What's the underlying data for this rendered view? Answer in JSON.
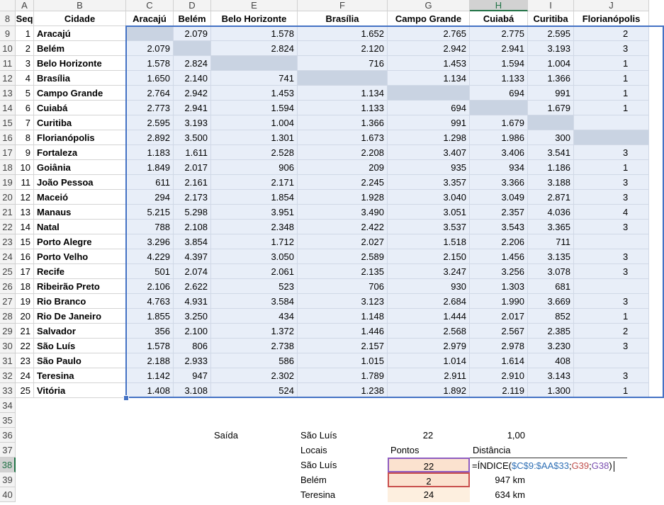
{
  "sheet": {
    "column_letters": [
      "A",
      "B",
      "C",
      "D",
      "E",
      "F",
      "G",
      "H",
      "I",
      "J"
    ],
    "row_numbers": [
      8,
      9,
      10,
      11,
      12,
      13,
      14,
      15,
      16,
      17,
      18,
      19,
      20,
      21,
      22,
      23,
      24,
      25,
      26,
      27,
      28,
      29,
      30,
      31,
      32,
      33,
      34,
      35,
      36,
      37,
      38,
      39,
      40
    ]
  },
  "table": {
    "header": [
      "Seq",
      "Cidade",
      "Aracajú",
      "Belém",
      "Belo Horizonte",
      "Brasília",
      "Campo Grande",
      "Cuiabá",
      "Curitiba",
      "Florianópolis"
    ],
    "rows": [
      [
        1,
        "Aracajú",
        null,
        "2.079",
        "1.578",
        "1.652",
        "2.765",
        "2.775",
        "2.595",
        "2"
      ],
      [
        2,
        "Belém",
        "2.079",
        null,
        "2.824",
        "2.120",
        "2.942",
        "2.941",
        "3.193",
        "3"
      ],
      [
        3,
        "Belo Horizonte",
        "1.578",
        "2.824",
        null,
        "716",
        "1.453",
        "1.594",
        "1.004",
        "1"
      ],
      [
        4,
        "Brasília",
        "1.650",
        "2.140",
        "741",
        null,
        "1.134",
        "1.133",
        "1.366",
        "1"
      ],
      [
        5,
        "Campo Grande",
        "2.764",
        "2.942",
        "1.453",
        "1.134",
        null,
        "694",
        "991",
        "1"
      ],
      [
        6,
        "Cuiabá",
        "2.773",
        "2.941",
        "1.594",
        "1.133",
        "694",
        null,
        "1.679",
        "1"
      ],
      [
        7,
        "Curitiba",
        "2.595",
        "3.193",
        "1.004",
        "1.366",
        "991",
        "1.679",
        null,
        null
      ],
      [
        8,
        "Florianópolis",
        "2.892",
        "3.500",
        "1.301",
        "1.673",
        "1.298",
        "1.986",
        "300",
        null
      ],
      [
        9,
        "Fortaleza",
        "1.183",
        "1.611",
        "2.528",
        "2.208",
        "3.407",
        "3.406",
        "3.541",
        "3"
      ],
      [
        10,
        "Goiânia",
        "1.849",
        "2.017",
        "906",
        "209",
        "935",
        "934",
        "1.186",
        "1"
      ],
      [
        11,
        "João Pessoa",
        "611",
        "2.161",
        "2.171",
        "2.245",
        "3.357",
        "3.366",
        "3.188",
        "3"
      ],
      [
        12,
        "Maceió",
        "294",
        "2.173",
        "1.854",
        "1.928",
        "3.040",
        "3.049",
        "2.871",
        "3"
      ],
      [
        13,
        "Manaus",
        "5.215",
        "5.298",
        "3.951",
        "3.490",
        "3.051",
        "2.357",
        "4.036",
        "4"
      ],
      [
        14,
        "Natal",
        "788",
        "2.108",
        "2.348",
        "2.422",
        "3.537",
        "3.543",
        "3.365",
        "3"
      ],
      [
        15,
        "Porto Alegre",
        "3.296",
        "3.854",
        "1.712",
        "2.027",
        "1.518",
        "2.206",
        "711",
        null
      ],
      [
        16,
        "Porto Velho",
        "4.229",
        "4.397",
        "3.050",
        "2.589",
        "2.150",
        "1.456",
        "3.135",
        "3"
      ],
      [
        17,
        "Recife",
        "501",
        "2.074",
        "2.061",
        "2.135",
        "3.247",
        "3.256",
        "3.078",
        "3"
      ],
      [
        18,
        "Ribeirão Preto",
        "2.106",
        "2.622",
        "523",
        "706",
        "930",
        "1.303",
        "681",
        null
      ],
      [
        19,
        "Rio Branco",
        "4.763",
        "4.931",
        "3.584",
        "3.123",
        "2.684",
        "1.990",
        "3.669",
        "3"
      ],
      [
        20,
        "Rio De Janeiro",
        "1.855",
        "3.250",
        "434",
        "1.148",
        "1.444",
        "2.017",
        "852",
        "1"
      ],
      [
        21,
        "Salvador",
        "356",
        "2.100",
        "1.372",
        "1.446",
        "2.568",
        "2.567",
        "2.385",
        "2"
      ],
      [
        22,
        "São Luís",
        "1.578",
        "806",
        "2.738",
        "2.157",
        "2.979",
        "2.978",
        "3.230",
        "3"
      ],
      [
        23,
        "São Paulo",
        "2.188",
        "2.933",
        "586",
        "1.015",
        "1.014",
        "1.614",
        "408",
        null
      ],
      [
        24,
        "Teresina",
        "1.142",
        "947",
        "2.302",
        "1.789",
        "2.911",
        "2.910",
        "3.143",
        "3"
      ],
      [
        25,
        "Vitória",
        "1.408",
        "3.108",
        "524",
        "1.238",
        "1.892",
        "2.119",
        "1.300",
        "1"
      ]
    ]
  },
  "summary": {
    "saida": "Saída",
    "origin": "São Luís",
    "origin_point": 22,
    "factor": "1,00",
    "locais_header": "Locais",
    "pontos_header": "Pontos",
    "distancia_header": "Distância",
    "stops": [
      {
        "local": "São Luís",
        "ponto": 22,
        "formula": [
          "=ÍNDICE(",
          "$C$9:$AA$33",
          ";",
          "G39",
          ";",
          "G38",
          ")"
        ]
      },
      {
        "local": "Belém",
        "ponto": 2,
        "distancia": "947 km"
      },
      {
        "local": "Teresina",
        "ponto": 24,
        "distancia": "634 km"
      }
    ]
  }
}
